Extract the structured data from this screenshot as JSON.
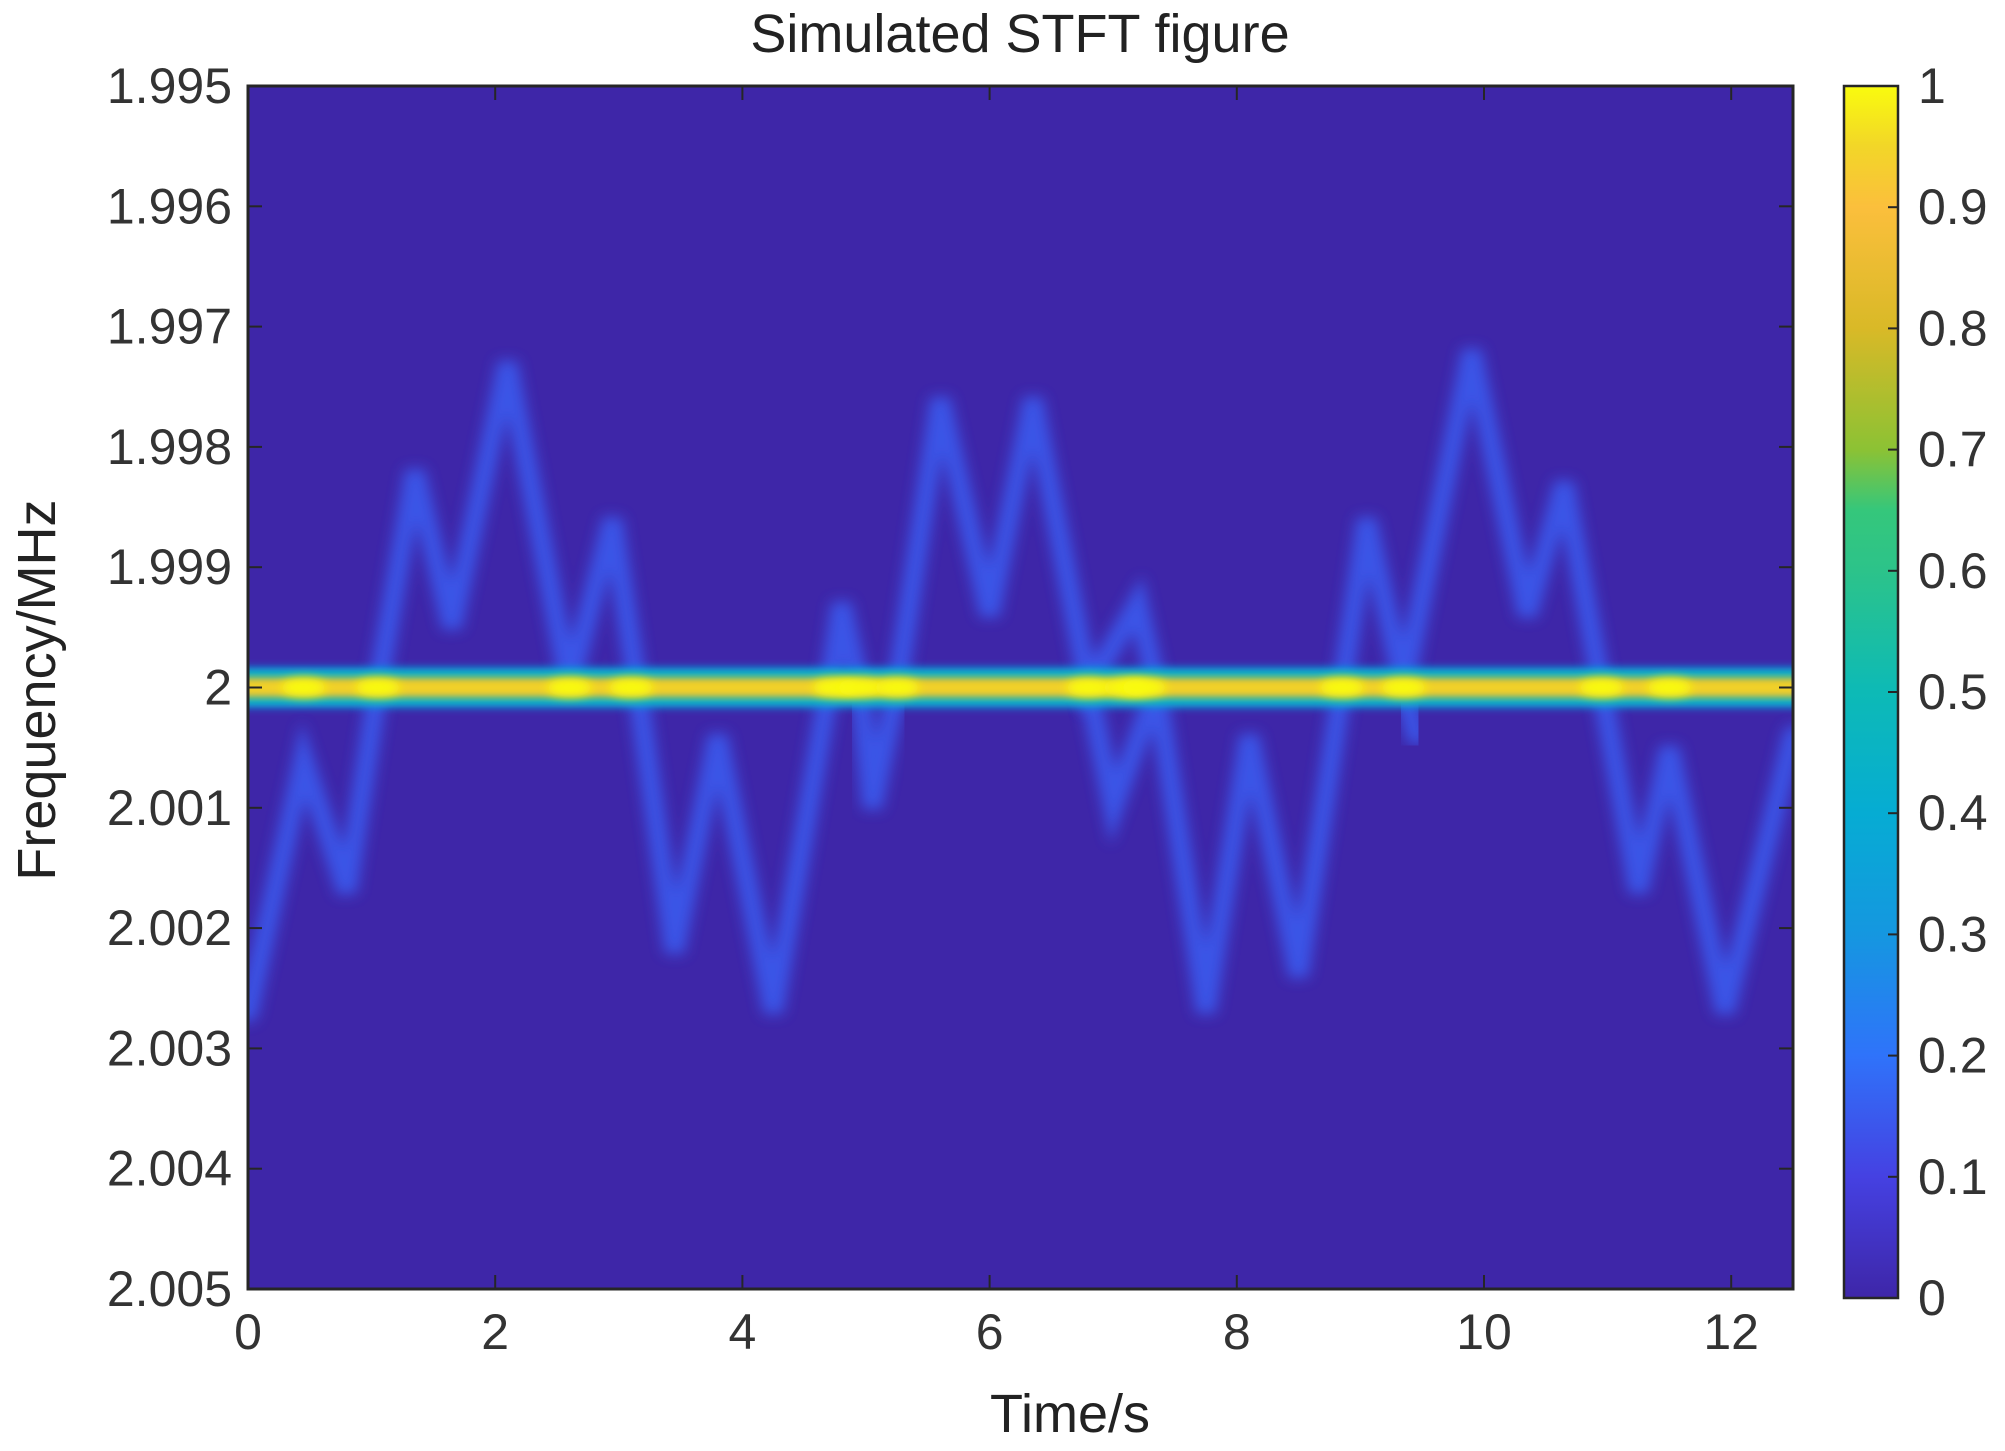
{
  "chart_data": {
    "type": "heatmap",
    "title": "Simulated STFT figure",
    "xlabel": "Time/s",
    "ylabel": "Frequency/MHz",
    "xlim": [
      0,
      12.5
    ],
    "ylim": [
      1.995,
      2.005
    ],
    "y_direction": "reversed",
    "x_ticks": [
      0,
      2,
      4,
      6,
      8,
      10,
      12
    ],
    "x_tick_labels": [
      "0",
      "2",
      "4",
      "6",
      "8",
      "10",
      "12"
    ],
    "y_ticks": [
      1.995,
      1.996,
      1.997,
      1.998,
      1.999,
      2,
      2.001,
      2.002,
      2.003,
      2.004,
      2.005
    ],
    "y_tick_labels": [
      "1.995",
      "1.996",
      "1.997",
      "1.998",
      "1.999",
      "2",
      "2.001",
      "2.002",
      "2.003",
      "2.004",
      "2.005"
    ],
    "colorbar": {
      "colormap": "parula",
      "range": [
        0,
        1
      ],
      "ticks": [
        0,
        0.1,
        0.2,
        0.3,
        0.4,
        0.5,
        0.6,
        0.7,
        0.8,
        0.9,
        1
      ],
      "tick_labels": [
        "0",
        "0.1",
        "0.2",
        "0.3",
        "0.4",
        "0.5",
        "0.6",
        "0.7",
        "0.8",
        "0.9",
        "1"
      ],
      "placement": "right"
    },
    "colormap_stops": [
      {
        "v": 0.0,
        "c": "#3E26A8"
      },
      {
        "v": 0.1,
        "c": "#4541E2"
      },
      {
        "v": 0.2,
        "c": "#2F73FA"
      },
      {
        "v": 0.3,
        "c": "#1597E0"
      },
      {
        "v": 0.4,
        "c": "#06ACD3"
      },
      {
        "v": 0.5,
        "c": "#0DBAB6"
      },
      {
        "v": 0.6,
        "c": "#2CC38A"
      },
      {
        "v": 0.65,
        "c": "#35C77B"
      },
      {
        "v": 0.7,
        "c": "#8CC234"
      },
      {
        "v": 0.8,
        "c": "#D9B927"
      },
      {
        "v": 0.9,
        "c": "#FBBF3C"
      },
      {
        "v": 0.95,
        "c": "#F2D628"
      },
      {
        "v": 1.0,
        "c": "#F9FB0E"
      }
    ],
    "background_level": 0.0,
    "carrier": {
      "frequency": 2.0,
      "level": 0.95
    },
    "sideband_level": 0.15,
    "sideband_upper": {
      "t": [
        0,
        0.5,
        0.8,
        1.05,
        1.35,
        1.65,
        2.1,
        2.6,
        2.95,
        3.15
      ],
      "f": [
        2.0,
        2.0,
        2.0,
        2.0,
        1.9982,
        1.9995,
        1.9973,
        2.0,
        1.9986,
        2.0
      ]
    },
    "sideband_upper_2": {
      "t": [
        4.7,
        4.8,
        4.95,
        5.25,
        5.6,
        6.0,
        6.35,
        6.8,
        7.2,
        7.35
      ],
      "f": [
        2.0,
        1.9993,
        2.0,
        2.0,
        1.9976,
        1.9994,
        1.9976,
        2.0,
        1.9993,
        2.0
      ]
    },
    "sideband_upper_3": {
      "t": [
        8.85,
        9.05,
        9.35,
        9.9,
        10.35,
        10.65,
        10.95
      ],
      "f": [
        2.0,
        1.9986,
        2.0,
        1.9972,
        1.9994,
        1.9983,
        2.0
      ]
    },
    "sideband_lower": {
      "t": [
        0,
        0.45,
        0.8,
        1.05
      ],
      "f": [
        2.0027,
        2.0006,
        2.0017,
        2.0
      ]
    },
    "sideband_lower_2": {
      "t": [
        3.15,
        3.45,
        3.8,
        4.25,
        4.7
      ],
      "f": [
        2.0,
        2.0022,
        2.0004,
        2.0027,
        2.0
      ]
    },
    "sideband_lower_3": {
      "t": [
        4.95,
        5.05,
        5.25
      ],
      "f": [
        2.0,
        2.001,
        2.0
      ]
    },
    "sideband_lower_4": {
      "t": [
        6.8,
        7.0,
        7.35,
        7.75,
        8.1,
        8.5,
        8.85
      ],
      "f": [
        2.0,
        2.001,
        2.0,
        2.0027,
        2.0004,
        2.0024,
        2.0
      ]
    },
    "sideband_lower_5": {
      "t": [
        9.35,
        9.45
      ],
      "f": [
        2.0,
        2.0004
      ]
    },
    "sideband_lower_6": {
      "t": [
        10.95,
        11.25,
        11.5,
        11.95,
        12.5
      ],
      "f": [
        2.0,
        2.0017,
        2.0005,
        2.0027,
        2.0004
      ]
    },
    "carrier_hotspots_t": [
      0.45,
      1.05,
      2.6,
      3.1,
      4.75,
      4.95,
      5.25,
      6.8,
      7.1,
      7.25,
      8.85,
      9.35,
      10.95,
      11.5
    ]
  }
}
